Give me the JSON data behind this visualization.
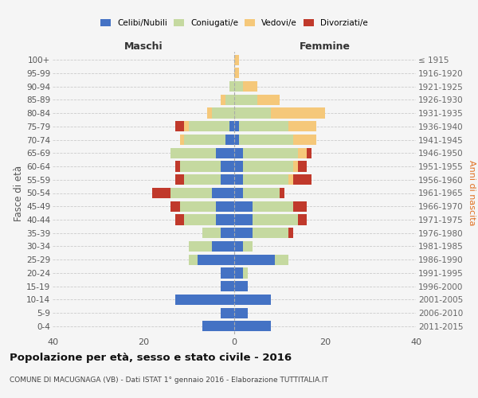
{
  "age_groups": [
    "0-4",
    "5-9",
    "10-14",
    "15-19",
    "20-24",
    "25-29",
    "30-34",
    "35-39",
    "40-44",
    "45-49",
    "50-54",
    "55-59",
    "60-64",
    "65-69",
    "70-74",
    "75-79",
    "80-84",
    "85-89",
    "90-94",
    "95-99",
    "100+"
  ],
  "birth_years": [
    "2011-2015",
    "2006-2010",
    "2001-2005",
    "1996-2000",
    "1991-1995",
    "1986-1990",
    "1981-1985",
    "1976-1980",
    "1971-1975",
    "1966-1970",
    "1961-1965",
    "1956-1960",
    "1951-1955",
    "1946-1950",
    "1941-1945",
    "1936-1940",
    "1931-1935",
    "1926-1930",
    "1921-1925",
    "1916-1920",
    "≤ 1915"
  ],
  "colors": {
    "celibi": "#4472C4",
    "coniugati": "#c5d9a0",
    "vedovi": "#f5c87a",
    "divorziati": "#c0392b"
  },
  "maschi": {
    "celibi": [
      7,
      3,
      13,
      3,
      3,
      8,
      5,
      3,
      4,
      4,
      5,
      3,
      3,
      4,
      2,
      1,
      0,
      0,
      0,
      0,
      0
    ],
    "coniugati": [
      0,
      0,
      0,
      0,
      0,
      2,
      5,
      4,
      7,
      8,
      9,
      8,
      9,
      10,
      9,
      9,
      5,
      2,
      1,
      0,
      0
    ],
    "vedovi": [
      0,
      0,
      0,
      0,
      0,
      0,
      0,
      0,
      0,
      0,
      0,
      0,
      0,
      0,
      1,
      1,
      1,
      1,
      0,
      0,
      0
    ],
    "divorziati": [
      0,
      0,
      0,
      0,
      0,
      0,
      0,
      0,
      2,
      2,
      4,
      2,
      1,
      0,
      0,
      2,
      0,
      0,
      0,
      0,
      0
    ]
  },
  "femmine": {
    "celibi": [
      8,
      3,
      8,
      3,
      2,
      9,
      2,
      4,
      4,
      4,
      2,
      2,
      2,
      2,
      1,
      1,
      0,
      0,
      0,
      0,
      0
    ],
    "coniugati": [
      0,
      0,
      0,
      0,
      1,
      3,
      2,
      8,
      10,
      9,
      8,
      10,
      11,
      12,
      12,
      11,
      8,
      5,
      2,
      0,
      0
    ],
    "vedovi": [
      0,
      0,
      0,
      0,
      0,
      0,
      0,
      0,
      0,
      0,
      0,
      1,
      1,
      2,
      5,
      6,
      12,
      5,
      3,
      1,
      1
    ],
    "divorziati": [
      0,
      0,
      0,
      0,
      0,
      0,
      0,
      1,
      2,
      3,
      1,
      4,
      2,
      1,
      0,
      0,
      0,
      0,
      0,
      0,
      0
    ]
  },
  "title": "Popolazione per età, sesso e stato civile - 2016",
  "subtitle": "COMUNE DI MACUGNAGA (VB) - Dati ISTAT 1° gennaio 2016 - Elaborazione TUTTITALIA.IT",
  "ylabel_left": "Fasce di età",
  "ylabel_right": "Anni di nascita",
  "xlabel_left": "Maschi",
  "xlabel_right": "Femmine",
  "xlim": 40,
  "background_color": "#f5f5f5",
  "grid_color": "#cccccc"
}
